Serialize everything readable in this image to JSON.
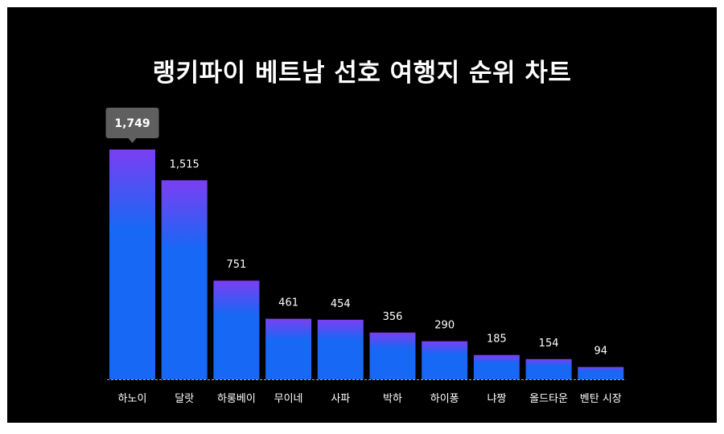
{
  "chart_data": {
    "type": "bar",
    "title": "랭키파이 베트남 선호 여행지 순위 차트",
    "categories": [
      "하노이",
      "달랏",
      "하롱베이",
      "무이네",
      "사파",
      "박하",
      "하이퐁",
      "냐짱",
      "올드타운",
      "벤탄 시장"
    ],
    "values": [
      1749,
      1515,
      751,
      461,
      454,
      356,
      290,
      185,
      154,
      94
    ],
    "value_labels": [
      "1,749",
      "1,515",
      "751",
      "461",
      "454",
      "356",
      "290",
      "185",
      "154",
      "94"
    ],
    "highlight_index": 0,
    "ylim": [
      0,
      1749
    ],
    "grid": false,
    "legend": "none",
    "colors": {
      "background": "#000000",
      "bar_top": "#7b3ff2",
      "bar_bottom": "#1668f5",
      "text": "#ffffff",
      "callout": "#5f5f5f",
      "baseline": "#9aa4b8"
    }
  }
}
